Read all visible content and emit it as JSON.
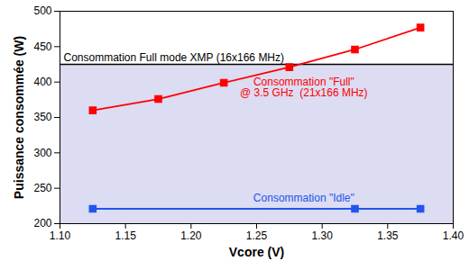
{
  "chart_data": {
    "type": "line",
    "x_label": "Vcore (V)",
    "y_label": "Puissance consommée (W)",
    "xlim": [
      1.1,
      1.4
    ],
    "xticks": [
      {
        "value": 1.1,
        "label": "1.10"
      },
      1.15,
      {
        "value": 1.2,
        "label": "1.20"
      },
      1.25,
      {
        "value": 1.3,
        "label": "1.30"
      },
      1.35,
      {
        "value": 1.4,
        "label": "1.40"
      }
    ],
    "ylim": [
      200,
      500
    ],
    "yticks": [
      200,
      250,
      300,
      350,
      400,
      450,
      500
    ],
    "grid": false,
    "series": [
      {
        "name": "Consommation \"Full\"\n@ 3.5 GHz  (21x166 MHz)",
        "color": "#ff0000",
        "marker": "square",
        "line_style": "solid",
        "x": [
          1.125,
          1.175,
          1.225,
          1.275,
          1.325,
          1.375
        ],
        "values": [
          360,
          376,
          399,
          421,
          446,
          477
        ]
      },
      {
        "name": "Consommation \"Idle\"",
        "color": "#2255ee",
        "marker": "square",
        "line_style": "solid",
        "x": [
          1.125,
          1.325,
          1.375
        ],
        "values": [
          221,
          221,
          221
        ]
      }
    ],
    "reference_lines": [
      {
        "name": "Consommation Full mode XMP (16x166 MHz)",
        "value": 425,
        "color": "#000000"
      }
    ]
  }
}
